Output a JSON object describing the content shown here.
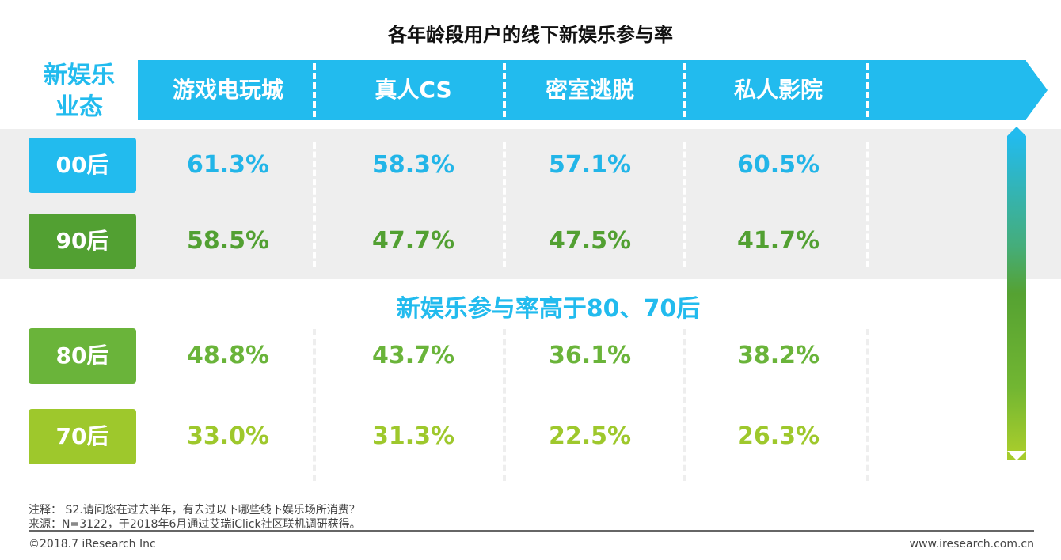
{
  "chart_data": {
    "type": "table",
    "title": "各年龄段用户的线下新娱乐参与率",
    "corner_label": [
      "新娱乐",
      "业态"
    ],
    "columns": [
      "游戏电玩城",
      "真人CS",
      "密室逃脱",
      "私人影院"
    ],
    "rows": [
      {
        "label": "00后",
        "values": [
          "61.3%",
          "58.3%",
          "57.1%",
          "60.5%"
        ],
        "color": "#22bbee",
        "text_color": "#22b5e8"
      },
      {
        "label": "90后",
        "values": [
          "58.5%",
          "47.7%",
          "47.5%",
          "41.7%"
        ],
        "color": "#52a032",
        "text_color": "#52a032"
      },
      {
        "label": "80后",
        "values": [
          "48.8%",
          "43.7%",
          "36.1%",
          "38.2%"
        ],
        "color": "#6ab43a",
        "text_color": "#6ab43a"
      },
      {
        "label": "70后",
        "values": [
          "33.0%",
          "31.3%",
          "22.5%",
          "26.3%"
        ],
        "color": "#9ec82c",
        "text_color": "#9ec82c"
      }
    ],
    "annotation": "新娱乐参与率高于80、70后"
  },
  "footer": {
    "note": "注释： S2.请问您在过去半年，有去过以下哪些线下娱乐场所消费？",
    "source": "来源：N=3122，于2018年6月通过艾瑞iClick社区联机调研获得。",
    "copyright": "©2018.7 iResearch Inc",
    "website": "www.iresearch.com.cn"
  }
}
